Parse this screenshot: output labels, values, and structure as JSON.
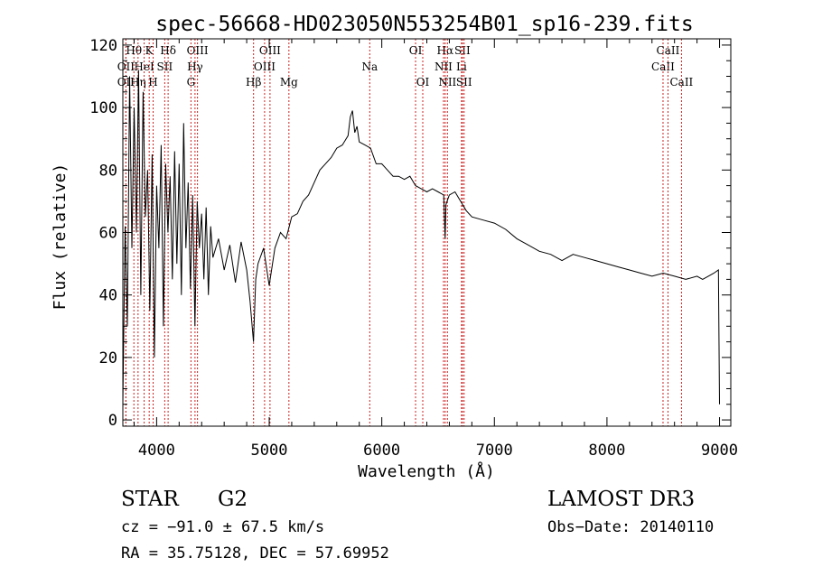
{
  "chart_data": {
    "type": "line",
    "title": "spec-56668-HD023050N553254B01_sp16-239.fits",
    "xlabel": "Wavelength (Å)",
    "ylabel": "Flux (relative)",
    "xlim": [
      3700,
      9100
    ],
    "ylim": [
      -2,
      122
    ],
    "x_ticks": [
      4000,
      5000,
      6000,
      7000,
      8000,
      9000
    ],
    "y_ticks": [
      0,
      20,
      40,
      60,
      80,
      100,
      120
    ],
    "grid": false,
    "series": [
      {
        "name": "spectrum",
        "x": [
          3700,
          3720,
          3740,
          3760,
          3780,
          3800,
          3820,
          3840,
          3860,
          3880,
          3900,
          3920,
          3940,
          3960,
          3980,
          4000,
          4020,
          4040,
          4060,
          4080,
          4100,
          4120,
          4140,
          4160,
          4180,
          4200,
          4220,
          4240,
          4260,
          4280,
          4300,
          4320,
          4340,
          4360,
          4380,
          4400,
          4420,
          4440,
          4460,
          4480,
          4500,
          4550,
          4600,
          4650,
          4700,
          4750,
          4800,
          4830,
          4860,
          4880,
          4900,
          4950,
          5000,
          5050,
          5100,
          5150,
          5200,
          5250,
          5300,
          5350,
          5400,
          5450,
          5500,
          5550,
          5600,
          5650,
          5700,
          5720,
          5740,
          5760,
          5780,
          5800,
          5850,
          5900,
          5950,
          6000,
          6050,
          6100,
          6150,
          6200,
          6250,
          6300,
          6350,
          6400,
          6450,
          6500,
          6550,
          6563,
          6570,
          6600,
          6650,
          6700,
          6750,
          6800,
          6900,
          7000,
          7100,
          7200,
          7300,
          7400,
          7500,
          7600,
          7700,
          7800,
          7900,
          8000,
          8100,
          8200,
          8300,
          8400,
          8500,
          8600,
          8700,
          8800,
          8850,
          8900,
          8950,
          8990,
          9000
        ],
        "y": [
          5,
          62,
          30,
          110,
          55,
          100,
          60,
          112,
          40,
          105,
          65,
          80,
          35,
          85,
          20,
          75,
          55,
          88,
          30,
          82,
          60,
          78,
          45,
          86,
          50,
          82,
          40,
          95,
          55,
          76,
          42,
          72,
          30,
          70,
          55,
          66,
          45,
          68,
          40,
          62,
          52,
          58,
          48,
          56,
          44,
          57,
          48,
          38,
          25,
          45,
          50,
          55,
          43,
          55,
          60,
          58,
          65,
          66,
          70,
          72,
          76,
          80,
          82,
          84,
          87,
          88,
          91,
          97,
          99,
          92,
          94,
          89,
          88,
          87,
          82,
          82,
          80,
          78,
          78,
          77,
          78,
          75,
          74,
          73,
          74,
          73,
          72,
          58,
          69,
          72,
          73,
          70,
          67,
          65,
          64,
          63,
          61,
          58,
          56,
          54,
          53,
          51,
          53,
          52,
          51,
          50,
          49,
          48,
          47,
          46,
          47,
          46,
          45,
          46,
          45,
          46,
          47,
          48,
          5
        ]
      }
    ],
    "lines": [
      {
        "label": "Hθ",
        "x": 3798,
        "row": 1
      },
      {
        "label": "OII",
        "x": 3727,
        "row": 2
      },
      {
        "label": "OII",
        "x": 3727,
        "row": 3
      },
      {
        "label": "Hη",
        "x": 3835,
        "row": 3
      },
      {
        "label": "HeI",
        "x": 3889,
        "row": 2
      },
      {
        "label": "K",
        "x": 3934,
        "row": 1
      },
      {
        "label": "H",
        "x": 3969,
        "row": 3
      },
      {
        "label": "SII",
        "x": 4072,
        "row": 2
      },
      {
        "label": "Hδ",
        "x": 4102,
        "row": 1
      },
      {
        "label": "OIII",
        "x": 4363,
        "row": 1
      },
      {
        "label": "Hγ",
        "x": 4341,
        "row": 2
      },
      {
        "label": "G",
        "x": 4305,
        "row": 3
      },
      {
        "label": "Hβ",
        "x": 4861,
        "row": 3
      },
      {
        "label": "OIII",
        "x": 5007,
        "row": 1
      },
      {
        "label": "OIII",
        "x": 4959,
        "row": 2
      },
      {
        "label": "Mg",
        "x": 5175,
        "row": 3
      },
      {
        "label": "Na",
        "x": 5893,
        "row": 2
      },
      {
        "label": "OI",
        "x": 6300,
        "row": 1
      },
      {
        "label": "OI",
        "x": 6364,
        "row": 3
      },
      {
        "label": "Hα",
        "x": 6563,
        "row": 1
      },
      {
        "label": "NII",
        "x": 6548,
        "row": 2
      },
      {
        "label": "NII",
        "x": 6583,
        "row": 3
      },
      {
        "label": "SII",
        "x": 6716,
        "row": 1
      },
      {
        "label": "Li",
        "x": 6708,
        "row": 2
      },
      {
        "label": "SII",
        "x": 6731,
        "row": 3
      },
      {
        "label": "CaII",
        "x": 8498,
        "row": 2
      },
      {
        "label": "CaII",
        "x": 8542,
        "row": 1
      },
      {
        "label": "CaII",
        "x": 8662,
        "row": 3
      }
    ]
  },
  "info": {
    "class_label": "STAR",
    "subclass": "G2",
    "survey": "LAMOST DR3",
    "redshift": "cz = −91.0 ± 67.5 km/s",
    "obs_date": "Obs−Date: 20140110",
    "coords": "RA =  35.75128, DEC =  57.69952"
  }
}
